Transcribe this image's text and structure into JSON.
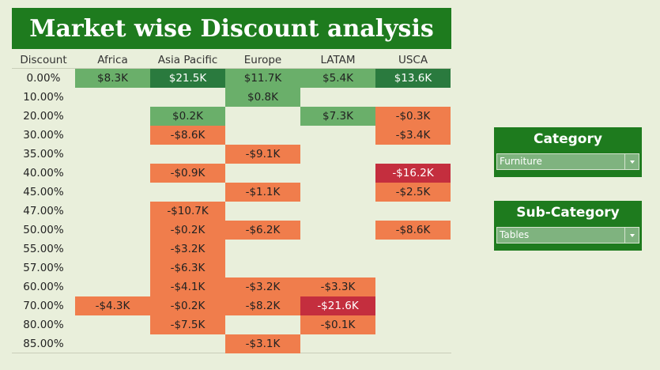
{
  "title": "Market wise Discount analysis",
  "table": {
    "header_label": "Discount",
    "columns": [
      "Africa",
      "Asia Pacific",
      "Europe",
      "LATAM",
      "USCA"
    ],
    "rows": [
      {
        "discount": "0.00%",
        "cells": [
          "$8.3K",
          "$21.5K",
          "$11.7K",
          "$5.4K",
          "$13.6K"
        ]
      },
      {
        "discount": "10.00%",
        "cells": [
          "",
          "",
          "$0.8K",
          "",
          ""
        ]
      },
      {
        "discount": "20.00%",
        "cells": [
          "",
          "$0.2K",
          "",
          "$7.3K",
          "-$0.3K"
        ]
      },
      {
        "discount": "30.00%",
        "cells": [
          "",
          "-$8.6K",
          "",
          "",
          "-$3.4K"
        ]
      },
      {
        "discount": "35.00%",
        "cells": [
          "",
          "",
          "-$9.1K",
          "",
          ""
        ]
      },
      {
        "discount": "40.00%",
        "cells": [
          "",
          "-$0.9K",
          "",
          "",
          "-$16.2K"
        ]
      },
      {
        "discount": "45.00%",
        "cells": [
          "",
          "",
          "-$1.1K",
          "",
          "-$2.5K"
        ]
      },
      {
        "discount": "47.00%",
        "cells": [
          "",
          "-$10.7K",
          "",
          "",
          ""
        ]
      },
      {
        "discount": "50.00%",
        "cells": [
          "",
          "-$0.2K",
          "-$6.2K",
          "",
          "-$8.6K"
        ]
      },
      {
        "discount": "55.00%",
        "cells": [
          "",
          "-$3.2K",
          "",
          "",
          ""
        ]
      },
      {
        "discount": "57.00%",
        "cells": [
          "",
          "-$6.3K",
          "",
          "",
          ""
        ]
      },
      {
        "discount": "60.00%",
        "cells": [
          "",
          "-$4.1K",
          "-$3.2K",
          "-$3.3K",
          ""
        ]
      },
      {
        "discount": "70.00%",
        "cells": [
          "-$4.3K",
          "-$0.2K",
          "-$8.2K",
          "-$21.6K",
          ""
        ]
      },
      {
        "discount": "80.00%",
        "cells": [
          "",
          "-$7.5K",
          "",
          "-$0.1K",
          ""
        ]
      },
      {
        "discount": "85.00%",
        "cells": [
          "",
          "",
          "-$3.1K",
          "",
          ""
        ]
      }
    ]
  },
  "colors": {
    "background": "#e9efdb",
    "title_bg": "#1e7b1e",
    "positive_light": "#6aaf6a",
    "positive_dark": "#2a7a3e",
    "negative": "#f07d4c",
    "negative_strong": "#c42e3e"
  },
  "filters": {
    "category": {
      "title": "Category",
      "value": "Furniture"
    },
    "subcategory": {
      "title": "Sub-Category",
      "value": "Tables"
    }
  }
}
